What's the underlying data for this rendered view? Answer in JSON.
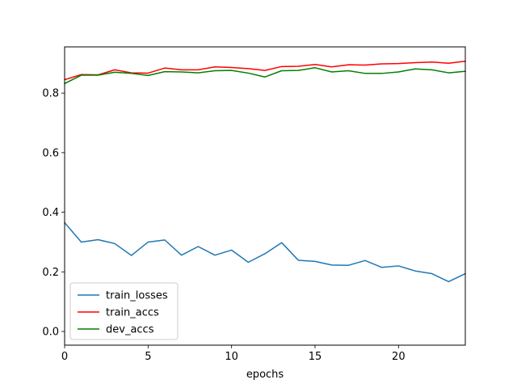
{
  "chart_data": {
    "type": "line",
    "title": "",
    "xlabel": "epochs",
    "ylabel": "",
    "xlim": [
      0,
      24
    ],
    "ylim": [
      -0.046,
      0.955
    ],
    "xticks": [
      0,
      5,
      10,
      15,
      20
    ],
    "xtick_labels": [
      "0",
      "5",
      "10",
      "15",
      "20"
    ],
    "yticks": [
      0.0,
      0.2,
      0.4,
      0.6,
      0.8
    ],
    "ytick_labels": [
      "0.0",
      "0.2",
      "0.4",
      "0.6",
      "0.8"
    ],
    "grid": false,
    "legend_position": "lower-left",
    "x": [
      0,
      1,
      2,
      3,
      4,
      5,
      6,
      7,
      8,
      9,
      10,
      11,
      12,
      13,
      14,
      15,
      16,
      17,
      18,
      19,
      20,
      21,
      22,
      23,
      24
    ],
    "series": [
      {
        "name": "train_losses",
        "color": "#1f77b4",
        "values": [
          0.365,
          0.3,
          0.308,
          0.295,
          0.255,
          0.3,
          0.307,
          0.256,
          0.285,
          0.256,
          0.273,
          0.232,
          0.261,
          0.298,
          0.239,
          0.235,
          0.223,
          0.222,
          0.238,
          0.215,
          0.22,
          0.203,
          0.194,
          0.167,
          0.194
        ]
      },
      {
        "name": "train_accs",
        "color": "#ff0000",
        "values": [
          0.845,
          0.862,
          0.861,
          0.878,
          0.868,
          0.867,
          0.884,
          0.878,
          0.878,
          0.888,
          0.886,
          0.882,
          0.876,
          0.889,
          0.89,
          0.896,
          0.888,
          0.895,
          0.894,
          0.898,
          0.899,
          0.902,
          0.904,
          0.9,
          0.907
        ]
      },
      {
        "name": "dev_accs",
        "color": "#008000",
        "values": [
          0.832,
          0.86,
          0.86,
          0.87,
          0.866,
          0.859,
          0.872,
          0.871,
          0.868,
          0.875,
          0.876,
          0.867,
          0.854,
          0.875,
          0.876,
          0.885,
          0.871,
          0.875,
          0.866,
          0.866,
          0.871,
          0.881,
          0.878,
          0.868,
          0.873
        ]
      }
    ]
  }
}
